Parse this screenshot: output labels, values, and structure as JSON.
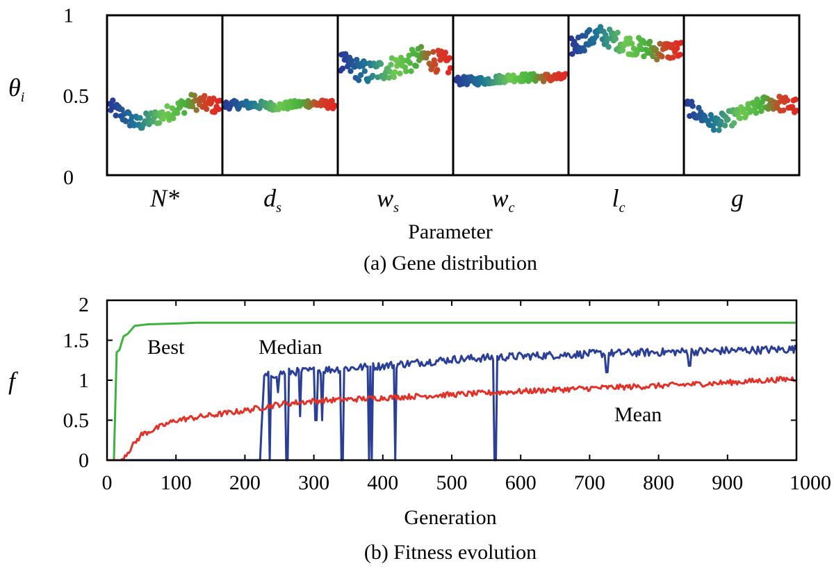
{
  "chart_data": [
    {
      "type": "scatter",
      "title": "(a) Gene distribution",
      "xlabel": "Parameter",
      "ylabel": "θi",
      "ylabel_symbol": "θ",
      "ylabel_subscript": "i",
      "ylim": [
        0,
        1
      ],
      "yticks": [
        "0",
        "0.5",
        "1"
      ],
      "color_encodes": "generation (blue = early, green = middle, red = late)",
      "parameters": [
        {
          "label": "N*",
          "symbol": "N*",
          "subscript": "",
          "stages": [
            0.43,
            0.32,
            0.38,
            0.46,
            0.43
          ],
          "spread": 0.05
        },
        {
          "label": "ds",
          "symbol": "d",
          "subscript": "s",
          "stages": [
            0.44,
            0.44,
            0.43,
            0.45,
            0.44
          ],
          "spread": 0.025
        },
        {
          "label": "ws",
          "symbol": "w",
          "subscript": "s",
          "stages": [
            0.7,
            0.64,
            0.68,
            0.74,
            0.69
          ],
          "spread": 0.07
        },
        {
          "label": "wc",
          "symbol": "w",
          "subscript": "c",
          "stages": [
            0.59,
            0.59,
            0.61,
            0.61,
            0.61
          ],
          "spread": 0.025
        },
        {
          "label": "lc",
          "symbol": "l",
          "subscript": "c",
          "stages": [
            0.8,
            0.88,
            0.82,
            0.78,
            0.78
          ],
          "spread": 0.06
        },
        {
          "label": "g",
          "symbol": "g",
          "subscript": "",
          "stages": [
            0.43,
            0.32,
            0.38,
            0.46,
            0.43
          ],
          "spread": 0.05
        }
      ]
    },
    {
      "type": "line",
      "title": "(b) Fitness evolution",
      "xlabel": "Generation",
      "ylabel": "f",
      "xlim": [
        0,
        1000
      ],
      "ylim": [
        0,
        2
      ],
      "xticks": [
        "0",
        "100",
        "200",
        "300",
        "400",
        "500",
        "600",
        "700",
        "800",
        "900",
        "1000"
      ],
      "yticks": [
        "0",
        "0.5",
        "1",
        "1.5",
        "2"
      ],
      "series": [
        {
          "name": "Best",
          "label": "Best",
          "color": "#3db33d",
          "x": [
            0,
            10,
            14,
            18,
            24,
            30,
            40,
            60,
            100,
            130,
            1000
          ],
          "y": [
            0,
            0,
            1.35,
            1.38,
            1.55,
            1.58,
            1.68,
            1.7,
            1.71,
            1.72,
            1.72
          ]
        },
        {
          "name": "Median",
          "label": "Median",
          "color": "#2b3f96",
          "x": [
            0,
            222,
            228,
            260,
            300,
            350,
            400,
            450,
            500,
            550,
            600,
            700,
            800,
            900,
            1000
          ],
          "y": [
            0,
            0,
            1.05,
            1.1,
            1.12,
            1.15,
            1.18,
            1.22,
            1.26,
            1.28,
            1.3,
            1.33,
            1.35,
            1.37,
            1.39
          ],
          "drops": [
            [
              222,
              0
            ],
            [
              236,
              0
            ],
            [
              248,
              0.85
            ],
            [
              261,
              0
            ],
            [
              280,
              0.55
            ],
            [
              303,
              0.5
            ],
            [
              312,
              0.5
            ],
            [
              341,
              0
            ],
            [
              380,
              0
            ],
            [
              384,
              0
            ],
            [
              418,
              0
            ],
            [
              563,
              0
            ],
            [
              725,
              1.1
            ],
            [
              845,
              1.18
            ]
          ]
        },
        {
          "name": "Mean",
          "label": "Mean",
          "color": "#e03228",
          "x": [
            0,
            20,
            30,
            50,
            100,
            150,
            200,
            250,
            300,
            400,
            500,
            600,
            700,
            800,
            900,
            1000
          ],
          "y": [
            0,
            0,
            0.1,
            0.32,
            0.5,
            0.56,
            0.62,
            0.7,
            0.74,
            0.78,
            0.82,
            0.86,
            0.9,
            0.93,
            0.97,
            1.02
          ]
        }
      ]
    }
  ]
}
